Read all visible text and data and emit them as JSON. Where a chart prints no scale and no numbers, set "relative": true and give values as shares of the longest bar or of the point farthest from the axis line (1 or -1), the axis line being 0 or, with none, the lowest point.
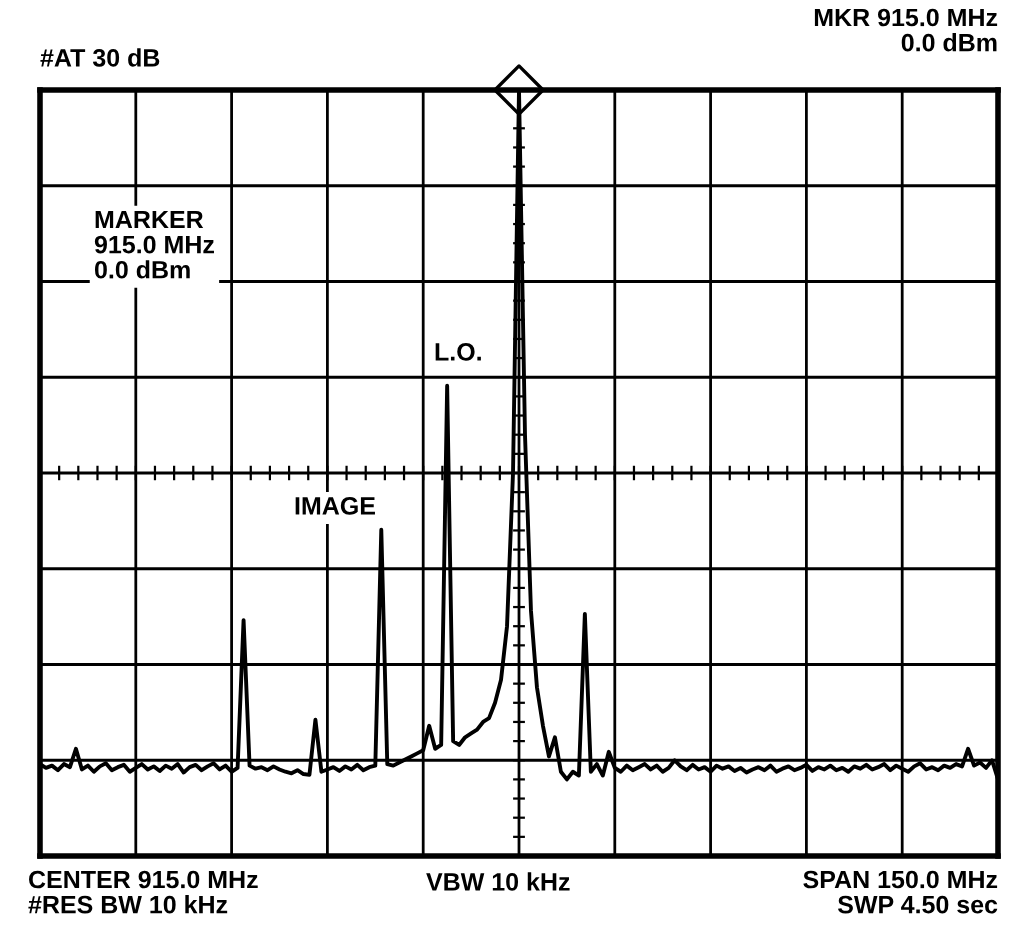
{
  "chart_data": {
    "type": "line",
    "relative": true,
    "grid": true,
    "annotations": [
      "#AT 30 dB",
      "MKR 915.0 MHz\n0.0 dBm",
      "MARKER\n915.0 MHz\n0.0 dBm",
      "L.O.",
      "IMAGE",
      "CENTER 915.0 MHz\n#RES BW 10 kHz",
      "VBW 10 kHz",
      "SPAN 150.0 MHz\nSWP 4.50 sec"
    ],
    "categories": [
      null,
      null,
      null,
      null,
      null,
      null,
      null,
      null,
      null,
      null,
      null,
      null,
      null,
      null,
      null,
      null,
      null,
      null,
      null,
      null,
      null,
      null,
      null,
      null,
      null,
      null,
      null,
      null,
      null,
      null,
      null,
      null,
      null,
      null,
      null,
      null,
      null,
      null,
      null,
      null,
      null,
      null,
      null,
      null,
      null,
      null,
      null,
      null,
      null,
      null,
      null,
      null,
      null,
      null,
      null,
      null,
      null,
      null,
      null,
      null,
      null,
      null,
      null,
      null,
      null,
      null,
      null,
      null,
      null,
      null,
      null,
      null,
      null,
      null,
      null,
      null,
      null,
      null,
      null,
      null,
      null,
      null,
      null,
      null,
      null,
      null,
      null,
      null,
      null,
      null,
      null,
      null,
      null,
      null,
      null,
      null,
      null,
      null,
      null,
      null,
      null,
      null,
      null,
      null,
      null,
      null,
      null,
      null,
      null,
      null,
      null,
      null,
      null,
      null,
      null,
      null,
      null,
      null,
      null,
      null,
      null,
      null,
      null,
      null,
      null,
      null,
      null,
      null,
      null,
      null,
      null,
      null,
      null,
      null,
      null,
      null,
      null,
      null,
      null,
      null,
      null,
      null,
      null,
      null,
      null,
      null,
      null,
      null,
      null,
      null,
      null,
      null,
      null,
      null,
      null,
      null,
      null,
      null,
      null,
      null,
      null
    ],
    "series": [
      {
        "color": "#000000",
        "line_style": "solid",
        "values": [
          0.12,
          0.115,
          0.118,
          0.112,
          0.12,
          0.116,
          0.14,
          0.113,
          0.118,
          0.11,
          0.117,
          0.121,
          0.112,
          0.116,
          0.119,
          0.11,
          0.115,
          0.12,
          0.113,
          0.117,
          0.111,
          0.118,
          0.114,
          0.12,
          0.109,
          0.116,
          0.119,
          0.112,
          0.117,
          0.121,
          0.113,
          0.118,
          0.11,
          0.115,
          0.308,
          0.118,
          0.114,
          0.116,
          0.112,
          0.117,
          0.113,
          0.11,
          0.108,
          0.112,
          0.107,
          0.106,
          0.178,
          0.11,
          0.113,
          0.116,
          0.111,
          0.117,
          0.113,
          0.119,
          0.112,
          0.116,
          0.118,
          0.426,
          0.12,
          0.118,
          0.122,
          0.126,
          0.13,
          0.134,
          0.138,
          0.17,
          0.14,
          0.145,
          0.614,
          0.15,
          0.145,
          0.155,
          0.16,
          0.165,
          0.175,
          0.18,
          0.2,
          0.23,
          0.3,
          0.5,
          1,
          0.55,
          0.32,
          0.22,
          0.17,
          0.13,
          0.155,
          0.11,
          0.1,
          0.11,
          0.105,
          0.316,
          0.11,
          0.12,
          0.105,
          0.136,
          0.115,
          0.11,
          0.118,
          0.112,
          0.116,
          0.12,
          0.113,
          0.118,
          0.11,
          0.115,
          0.125,
          0.117,
          0.112,
          0.119,
          0.113,
          0.116,
          0.11,
          0.118,
          0.114,
          0.117,
          0.111,
          0.115,
          0.109,
          0.113,
          0.116,
          0.112,
          0.118,
          0.11,
          0.114,
          0.117,
          0.112,
          0.115,
          0.119,
          0.111,
          0.116,
          0.113,
          0.118,
          0.112,
          0.115,
          0.11,
          0.117,
          0.114,
          0.119,
          0.113,
          0.116,
          0.12,
          0.112,
          0.118,
          0.114,
          0.11,
          0.117,
          0.121,
          0.113,
          0.116,
          0.112,
          0.118,
          0.115,
          0.12,
          0.117,
          0.14,
          0.118,
          0.122,
          0.115,
          0.125,
          0.1
        ]
      }
    ]
  }
}
